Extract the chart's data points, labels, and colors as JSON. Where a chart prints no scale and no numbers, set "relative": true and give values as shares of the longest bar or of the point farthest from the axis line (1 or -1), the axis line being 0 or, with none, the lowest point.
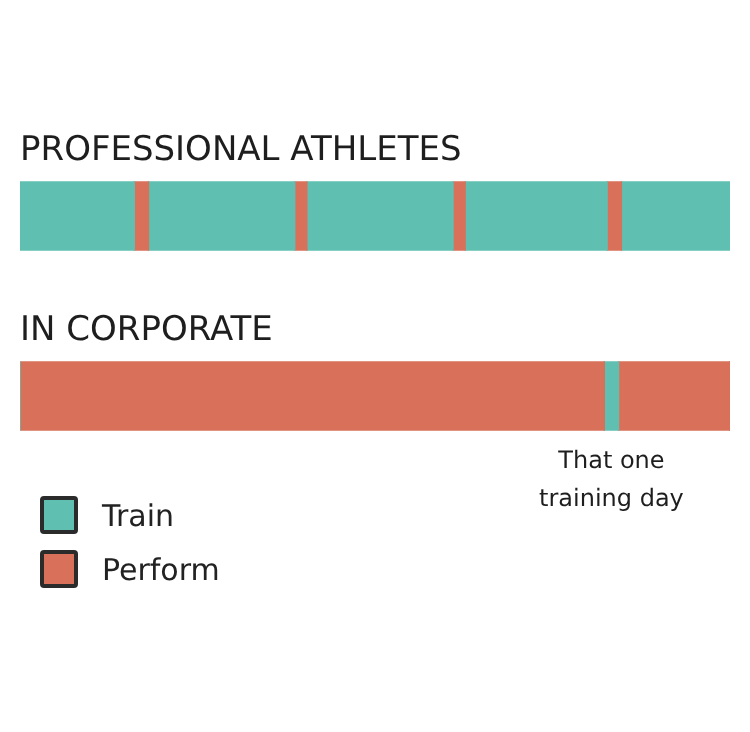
{
  "chart_data": {
    "type": "bar",
    "orientation": "horizontal",
    "stacked": true,
    "relative": true,
    "legend": "bottom left",
    "categories": [
      "PROFESSIONAL ATHLETES",
      "IN CORPORATE"
    ],
    "series": [
      {
        "name": "Train",
        "color": "#5fbfb0",
        "values": [
          0.161,
          0
        ]
      },
      {
        "name": "Perform",
        "color": "#d9705a",
        "values": [
          0.02,
          0.823
        ]
      },
      {
        "color": "#5fbfb0",
        "values": [
          0.206,
          0.02
        ]
      },
      {
        "color": "#d9705a",
        "values": [
          0.017,
          0.157
        ]
      },
      {
        "color": "#5fbfb0",
        "values": [
          0.206,
          0
        ]
      },
      {
        "color": "#d9705a",
        "values": [
          0.017,
          0
        ]
      },
      {
        "color": "#5fbfb0",
        "values": [
          0.2,
          0
        ]
      },
      {
        "color": "#d9705a",
        "values": [
          0.02,
          0
        ]
      },
      {
        "color": "#5fbfb0",
        "values": [
          0.153,
          0
        ]
      }
    ],
    "annotations": [
      {
        "text": "That one training day",
        "x": 0.833,
        "y": "IN CORPORATE"
      }
    ]
  }
}
